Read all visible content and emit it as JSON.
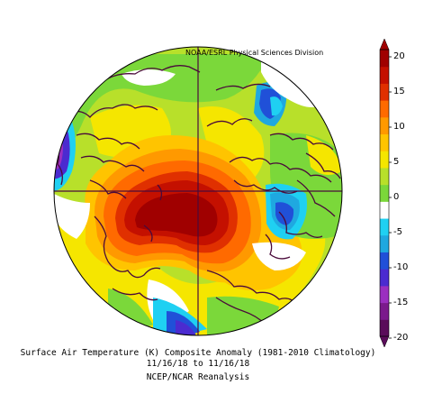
{
  "map": {
    "credit": "NOAA/ESRL Physical Sciences Division",
    "caption_title": "Surface Air Temperature (K) Composite Anomaly (1981-2010 Climatology)",
    "caption_dates": "11/16/18  to 11/16/18",
    "caption_source": "NCEP/NCAR Reanalysis",
    "projection": "north polar stereographic"
  },
  "legend": {
    "ticks": [
      "20",
      "15",
      "10",
      "5",
      "0",
      "-5",
      "-10",
      "-15",
      "-20"
    ],
    "colors": [
      "#5a0d5a",
      "#7b1a8c",
      "#9b2fc0",
      "#4b2bd0",
      "#2050d8",
      "#1fa8e0",
      "#1fd0f2",
      "#ffffff",
      "#7bd83a",
      "#b8e02a",
      "#f5e600",
      "#ffc400",
      "#ff9900",
      "#ff6a00",
      "#e03000",
      "#c41000",
      "#a00000"
    ]
  }
}
